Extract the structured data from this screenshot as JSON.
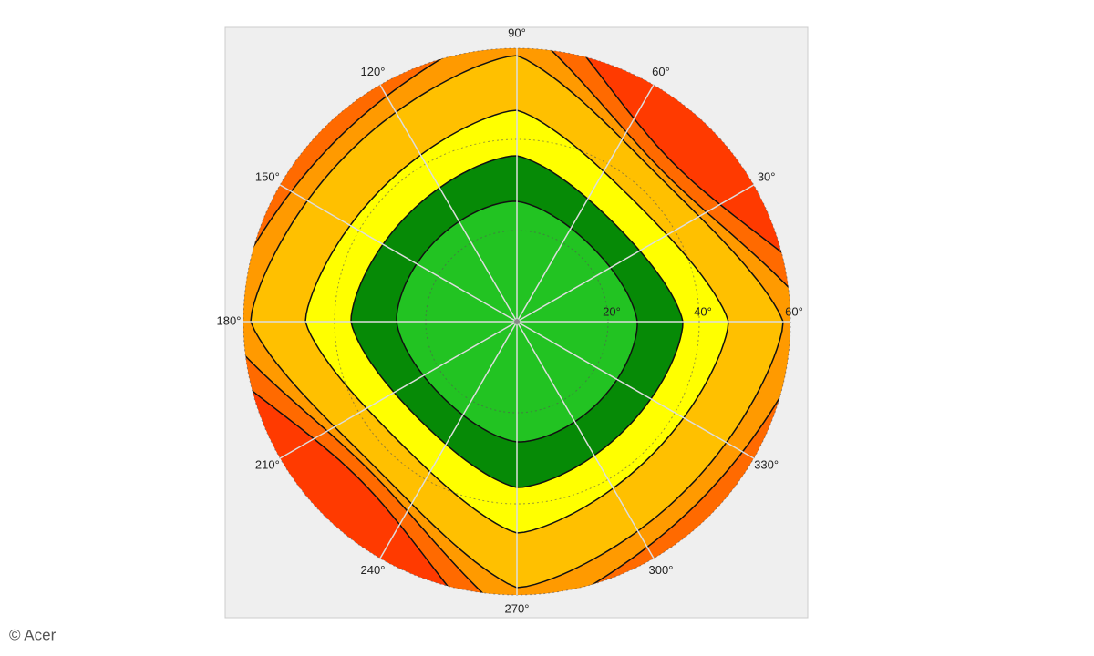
{
  "chart_data": {
    "type": "polar-contour",
    "angle_ticks": [
      {
        "value": 30,
        "label": "30°"
      },
      {
        "value": 60,
        "label": "60°"
      },
      {
        "value": 90,
        "label": "90°"
      },
      {
        "value": 120,
        "label": "120°"
      },
      {
        "value": 150,
        "label": "150°"
      },
      {
        "value": 180,
        "label": "180°"
      },
      {
        "value": 210,
        "label": "210°"
      },
      {
        "value": 240,
        "label": "240°"
      },
      {
        "value": 270,
        "label": "270°"
      },
      {
        "value": 300,
        "label": "300°"
      },
      {
        "value": 330,
        "label": "330°"
      }
    ],
    "rlim": [
      0,
      60
    ],
    "rticks": [
      {
        "value": 20,
        "label": "20°"
      },
      {
        "value": 40,
        "label": "40°"
      },
      {
        "value": 60,
        "label": "60°"
      }
    ]
  },
  "credit": "© Acer"
}
